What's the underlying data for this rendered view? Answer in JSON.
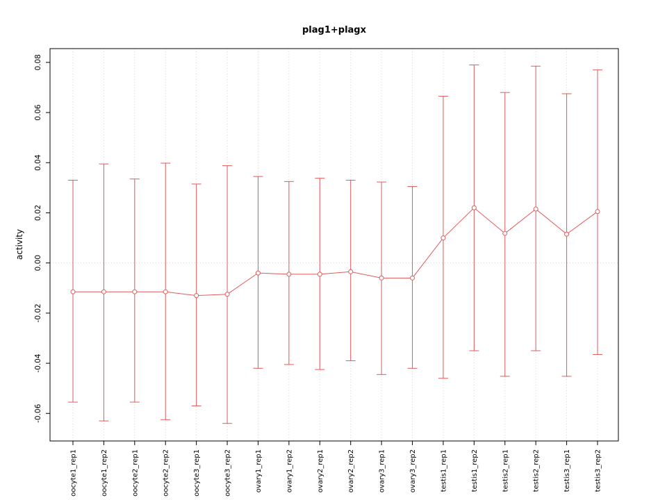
{
  "chart_data": {
    "type": "line",
    "title": "plag1+plagx",
    "xlabel": "",
    "ylabel": "activity",
    "legend": "none",
    "grid": "dotted vertical lines at each category and dotted horizontal line at 0",
    "axis": {
      "ymin": -0.071,
      "ymax": 0.0855
    },
    "yticks": {
      "values": [
        -0.06,
        -0.04,
        -0.02,
        0.0,
        0.02,
        0.04,
        0.06,
        0.08
      ],
      "labels": [
        "-0.06",
        "-0.04",
        "-0.02",
        "0.00",
        "0.02",
        "0.04",
        "0.06",
        "0.08"
      ]
    },
    "categories": [
      "oocyte1_rep1",
      "oocyte1_rep2",
      "oocyte2_rep1",
      "oocyte2_rep2",
      "oocyte3_rep1",
      "oocyte3_rep2",
      "ovary1_rep1",
      "ovary1_rep2",
      "ovary2_rep1",
      "ovary2_rep2",
      "ovary3_rep1",
      "ovary3_rep2",
      "testis1_rep1",
      "testis1_rep2",
      "testis2_rep1",
      "testis2_rep2",
      "testis3_rep1",
      "testis3_rep2"
    ],
    "series": [
      {
        "name": "activity",
        "marker": "open-circle",
        "values": [
          -0.0115,
          -0.0115,
          -0.0115,
          -0.0115,
          -0.013,
          -0.0125,
          -0.004,
          -0.0045,
          -0.0045,
          -0.0035,
          -0.006,
          -0.006,
          0.01,
          0.022,
          0.0118,
          0.0215,
          0.0115,
          0.0205
        ],
        "error_lower": [
          -0.0555,
          -0.063,
          -0.0555,
          -0.0625,
          -0.057,
          -0.064,
          -0.042,
          -0.0405,
          -0.0425,
          -0.039,
          -0.0445,
          -0.042,
          -0.046,
          -0.035,
          -0.0452,
          -0.035,
          -0.0452,
          -0.0365
        ],
        "error_upper": [
          0.033,
          0.0395,
          0.0335,
          0.0398,
          0.0315,
          0.0388,
          0.0345,
          0.0325,
          0.0338,
          0.033,
          0.0323,
          0.0305,
          0.0665,
          0.079,
          0.068,
          0.0785,
          0.0675,
          0.077
        ]
      }
    ],
    "colors": {
      "series": "#e05a5a",
      "grid": "#d2d2d2",
      "axis": "#000000",
      "background": "#ffffff"
    }
  }
}
